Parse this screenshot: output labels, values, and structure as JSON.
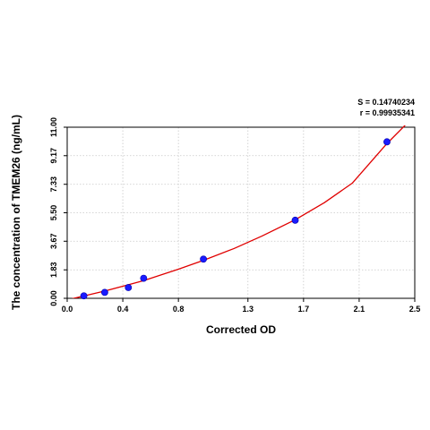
{
  "chart_data": {
    "type": "scatter",
    "xlabel": "Corrected OD",
    "ylabel": "The concentration of TMEM26 (ng/mL)",
    "xlim": [
      0.0,
      2.5
    ],
    "ylim": [
      0.0,
      11.0
    ],
    "x_ticks": [
      "0.0",
      "0.4",
      "0.8",
      "1.3",
      "1.7",
      "2.1",
      "2.5"
    ],
    "y_ticks": [
      "0.00",
      "1.83",
      "3.67",
      "5.50",
      "7.33",
      "9.17",
      "11.00"
    ],
    "grid": true,
    "stats": {
      "s_label": "S = 0.14740234",
      "r_label": "r = 0.99935341"
    },
    "series": [
      {
        "points": [
          {
            "x": 0.12,
            "y": 0.16
          },
          {
            "x": 0.27,
            "y": 0.38
          },
          {
            "x": 0.44,
            "y": 0.69
          },
          {
            "x": 0.55,
            "y": 1.29
          },
          {
            "x": 0.98,
            "y": 2.52
          },
          {
            "x": 1.64,
            "y": 5.02
          },
          {
            "x": 2.3,
            "y": 10.06
          }
        ],
        "color": "#1a1aff"
      }
    ],
    "fit_curve": {
      "color": "#e00000",
      "points": [
        {
          "x": 0.0,
          "y": -0.1
        },
        {
          "x": 0.12,
          "y": 0.15
        },
        {
          "x": 0.27,
          "y": 0.47
        },
        {
          "x": 0.44,
          "y": 0.87
        },
        {
          "x": 0.55,
          "y": 1.14
        },
        {
          "x": 0.8,
          "y": 1.87
        },
        {
          "x": 0.98,
          "y": 2.44
        },
        {
          "x": 1.2,
          "y": 3.2
        },
        {
          "x": 1.4,
          "y": 4.0
        },
        {
          "x": 1.64,
          "y": 5.05
        },
        {
          "x": 1.85,
          "y": 6.15
        },
        {
          "x": 2.05,
          "y": 7.4
        },
        {
          "x": 2.3,
          "y": 9.95
        },
        {
          "x": 2.45,
          "y": 11.3
        }
      ]
    }
  }
}
